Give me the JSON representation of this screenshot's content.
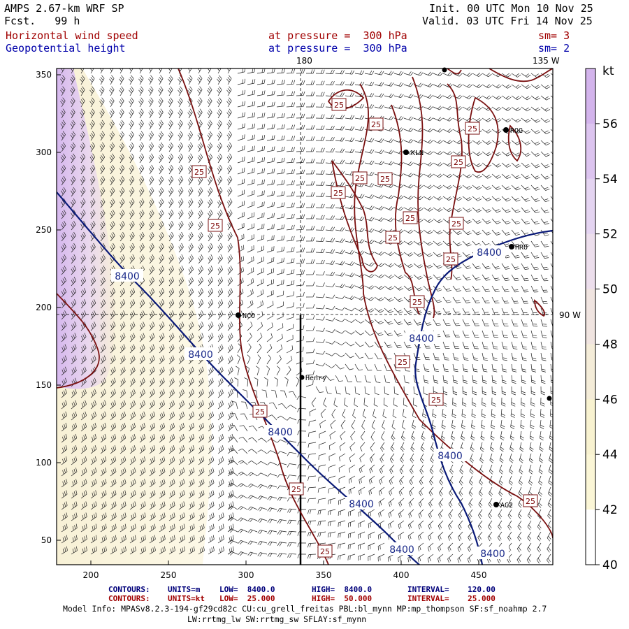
{
  "header": {
    "model": "AMPS 2.67-km WRF SP",
    "fcst": "Fcst.   99 h",
    "init": "Init. 00 UTC Mon 10 Nov 25",
    "valid": "Valid. 03 UTC Fri 14 Nov 25",
    "field1": "Horizontal wind speed",
    "field2": "Geopotential height",
    "level1": "at pressure =  300 hPa",
    "level2": "at pressure =  300 hPa",
    "sm1": "sm= 3",
    "sm2": "sm= 2"
  },
  "map": {
    "lon_labels": [
      "180",
      "135 W",
      "90 W"
    ],
    "x_ticks": [
      "200",
      "250",
      "300",
      "350",
      "400",
      "450"
    ],
    "y_ticks": [
      "350",
      "300",
      "250",
      "200",
      "150",
      "100",
      "50"
    ],
    "stations": [
      "NCO",
      "Henry",
      "KLN",
      "ROG",
      "HRO",
      "AG2"
    ],
    "wind_contour_label": "25",
    "height_contour_label": "8400"
  },
  "colorbar": {
    "unit": "kt",
    "ticks": [
      "56",
      "54",
      "52",
      "50",
      "48",
      "46",
      "44",
      "42",
      "40"
    ],
    "colors": [
      "#d3b4ec",
      "#dcc4ef",
      "#e4d4f1",
      "#ecdeec",
      "#f0e4e0",
      "#f4ecd8",
      "#f8f2d0",
      "#fbf6d6",
      "#ffffff"
    ]
  },
  "footer": {
    "row1": {
      "label": "CONTOURS:",
      "units": "UNITS=m",
      "low": "LOW=  8400.0",
      "high": "HIGH=  8400.0",
      "interval": "INTERVAL=    120.00"
    },
    "row2": {
      "label": "CONTOURS:",
      "units": "UNITS=kt",
      "low": "LOW=  25.000",
      "high": "HIGH=  50.000",
      "interval": "INTERVAL=    25.000"
    },
    "info1": "Model Info: MPASv8.2.3-194-gf29cd82c CU:cu_grell_freitas PBL:bl_mynn MP:mp_thompson SF:sf_noahmp 2.7",
    "info2": "LW:rrtmg_lw SW:rrtmg_sw SFLAY:sf_mynn"
  }
}
